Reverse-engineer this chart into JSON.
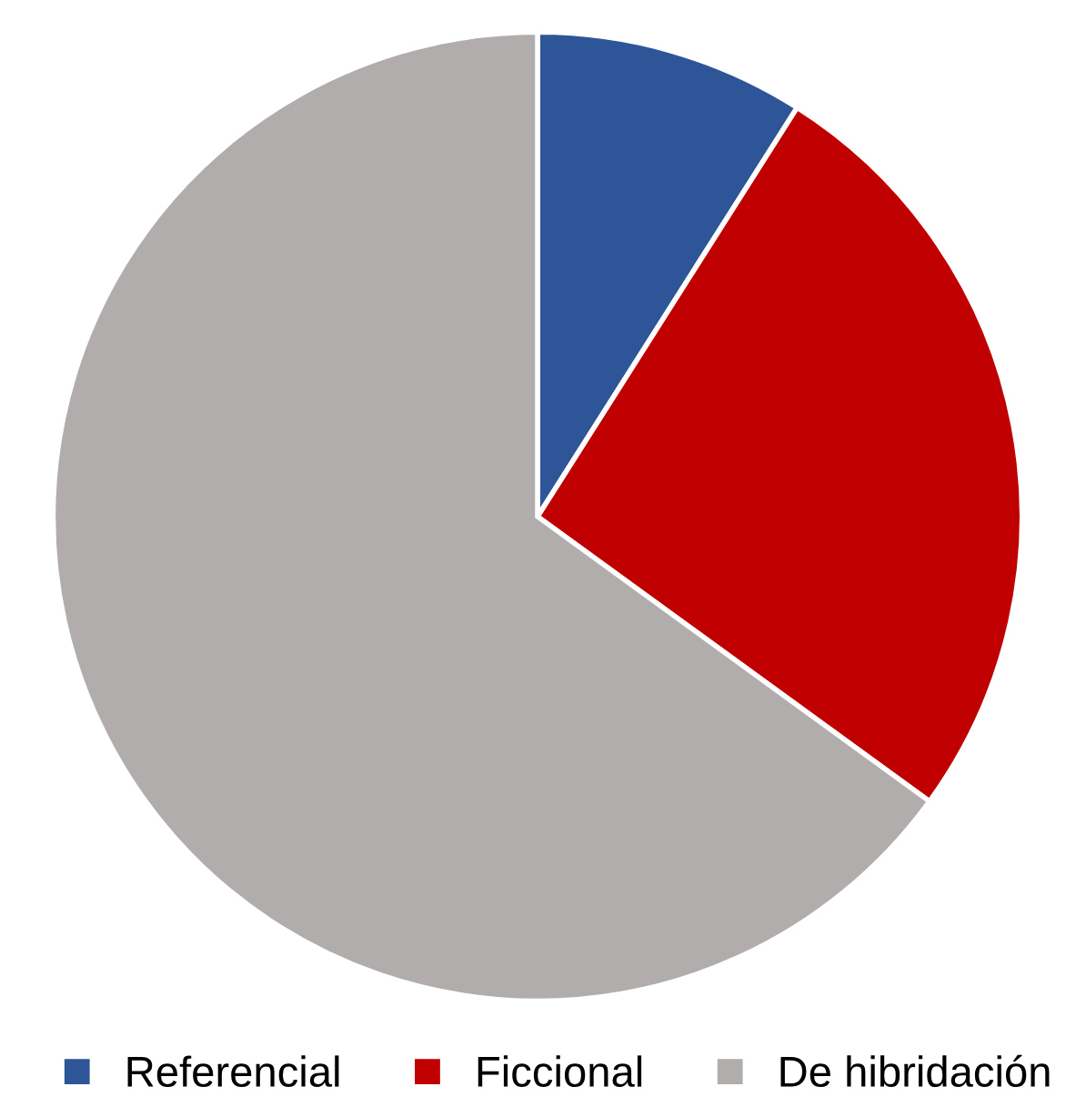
{
  "chart_data": {
    "type": "pie",
    "categories": [
      "Referencial",
      "Ficcional",
      "De hibridación"
    ],
    "values": [
      9,
      26,
      65
    ],
    "colors": [
      "#2e5597",
      "#c00000",
      "#b0adac"
    ],
    "legend": "bottom"
  }
}
